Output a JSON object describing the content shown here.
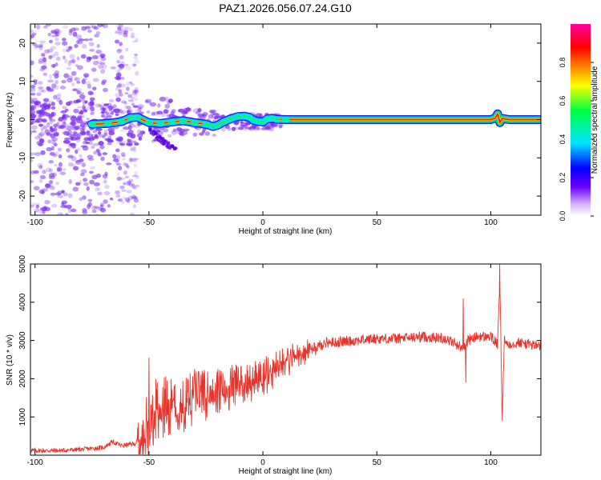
{
  "title": "PAZ1.2026.056.07.24.G10",
  "colors": {
    "snr_line": "#e8332a",
    "ridge": "#ff1a1a",
    "scatter": "#7b2cf0",
    "axis": "#000000"
  },
  "chart_data": [
    {
      "type": "heatmap",
      "name": "spectrogram",
      "title": "PAZ1.2026.056.07.24.G10",
      "xlabel": "Height of straight line (km)",
      "ylabel": "Frequency (Hz)",
      "xlim": [
        -102,
        122
      ],
      "ylim": [
        -25,
        25
      ],
      "xticks": [
        -100,
        -50,
        0,
        50,
        100
      ],
      "yticks": [
        -20,
        -10,
        0,
        10,
        20
      ],
      "ridge": {
        "x": [
          -75,
          -68,
          -62,
          -58,
          -55,
          -50,
          -45,
          -40,
          -35,
          -30,
          -25,
          -22,
          -20,
          -17,
          -14,
          -11,
          -8,
          -6,
          -4,
          -2,
          0,
          2,
          4,
          6,
          10,
          20,
          40,
          60,
          80,
          90,
          100,
          102,
          103,
          104,
          105,
          108,
          112,
          122
        ],
        "y": [
          -1.2,
          -1.0,
          -0.5,
          0.5,
          0.6,
          -0.8,
          -1.0,
          -0.6,
          -0.3,
          -0.8,
          -1.2,
          -1.8,
          -1.5,
          -0.5,
          0.2,
          0.8,
          0.9,
          0.6,
          -0.2,
          -0.5,
          -0.6,
          0.2,
          0.3,
          0.1,
          0.0,
          0.0,
          0.0,
          0.0,
          0.0,
          0.0,
          0.0,
          0.4,
          1.5,
          -0.8,
          0.3,
          0.0,
          0.0,
          0.0
        ]
      },
      "colorbar": {
        "label": "Normalized spectral amplitude",
        "ticks": [
          "0.0",
          "0.2",
          "0.4",
          "0.6",
          "0.8"
        ],
        "range": [
          0.0,
          1.0
        ]
      }
    },
    {
      "type": "line",
      "name": "snr",
      "xlabel": "Height of straight line (km)",
      "ylabel": "SNR (10 * v/v)",
      "xlim": [
        -102,
        122
      ],
      "ylim": [
        0,
        5000
      ],
      "xticks": [
        -100,
        -50,
        0,
        50,
        100
      ],
      "yticks": [
        1000,
        2000,
        3000,
        4000,
        5000
      ],
      "series": [
        {
          "name": "SNR",
          "x": [
            -102,
            -90,
            -80,
            -70,
            -66,
            -62,
            -56,
            -52,
            -48,
            -45,
            -42,
            -38,
            -34,
            -30,
            -26,
            -22,
            -18,
            -14,
            -10,
            -6,
            -2,
            0,
            4,
            8,
            12,
            16,
            20,
            24,
            28,
            32,
            40,
            50,
            60,
            70,
            80,
            85,
            88,
            90,
            94,
            100,
            103,
            104,
            105,
            106,
            108,
            112,
            122
          ],
          "y": [
            120,
            120,
            150,
            200,
            350,
            250,
            300,
            700,
            1300,
            1500,
            1450,
            1600,
            1500,
            1650,
            1700,
            1800,
            1800,
            1900,
            1950,
            2000,
            2100,
            2150,
            2300,
            2450,
            2600,
            2700,
            2800,
            2850,
            2950,
            2950,
            3000,
            3050,
            3050,
            3100,
            3050,
            2900,
            2800,
            3000,
            3100,
            3100,
            2900,
            4500,
            1000,
            3000,
            2900,
            2950,
            2850
          ],
          "spikes": [
            {
              "x": -50,
              "y": 2550
            },
            {
              "x": -42,
              "y": 1950
            },
            {
              "x": -30,
              "y": 2250
            },
            {
              "x": 88,
              "y": 4100
            },
            {
              "x": 89,
              "y": 1900
            },
            {
              "x": 104,
              "y": 5000
            },
            {
              "x": 105,
              "y": 900
            }
          ]
        }
      ]
    }
  ]
}
